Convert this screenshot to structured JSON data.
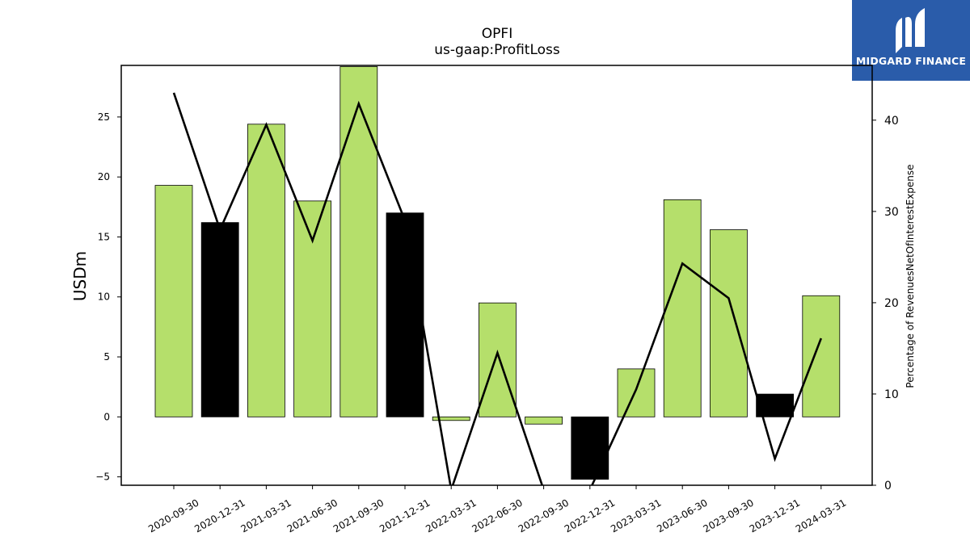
{
  "header": {
    "title": "OPFI",
    "subtitle": "us-gaap:ProfitLoss"
  },
  "logo": {
    "text": "MIDGARD FINANCE",
    "background": "#2a5caa"
  },
  "chart_data": {
    "type": "bar",
    "title": "OPFI",
    "subtitle": "us-gaap:ProfitLoss",
    "categories": [
      "2020-09-30",
      "2020-12-31",
      "2021-03-31",
      "2021-06-30",
      "2021-09-30",
      "2021-12-31",
      "2022-03-31",
      "2022-06-30",
      "2022-09-30",
      "2022-12-31",
      "2023-03-31",
      "2023-06-30",
      "2023-09-30",
      "2023-12-31",
      "2024-03-31"
    ],
    "bar_series": {
      "values": [
        19.3,
        16.2,
        24.4,
        18.0,
        29.2,
        17.0,
        -0.3,
        9.5,
        -0.6,
        -5.2,
        4.0,
        18.1,
        15.6,
        1.9,
        10.1
      ],
      "colors": [
        "#b5df6b",
        "#000000",
        "#b5df6b",
        "#b5df6b",
        "#b5df6b",
        "#000000",
        "#b5df6b",
        "#b5df6b",
        "#b5df6b",
        "#000000",
        "#b5df6b",
        "#b5df6b",
        "#b5df6b",
        "#000000",
        "#b5df6b"
      ]
    },
    "line_series": {
      "values": [
        43.0,
        28.0,
        39.5,
        26.8,
        41.8,
        29.0,
        -0.5,
        14.5,
        -0.5,
        -0.5,
        10.5,
        24.3,
        20.5,
        2.9,
        16.1
      ],
      "color": "#000000"
    },
    "ylabel": "USDm",
    "ylabel_right": "Percentage of RevenuesNetOfInterestExpense",
    "ylim": [
      -5.7,
      29.3
    ],
    "ylim_right": [
      0,
      46.0
    ],
    "yticks": [
      -5,
      0,
      5,
      10,
      15,
      20,
      25
    ],
    "yticks_right": [
      0,
      10,
      20,
      30,
      40
    ],
    "grid": false,
    "legend": "none"
  }
}
